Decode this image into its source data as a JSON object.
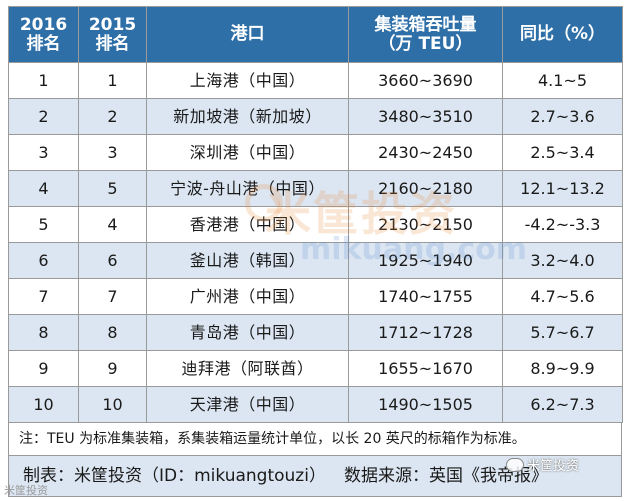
{
  "headers": {
    "rank2016": [
      "2016",
      "排名"
    ],
    "rank2015": [
      "2015",
      "排名"
    ],
    "port": "港口",
    "throughput": [
      "集装箱吞吐量",
      "（万 TEU）"
    ],
    "yoy": "同比（%）"
  },
  "rows": [
    {
      "r2016": "1",
      "r2015": "1",
      "port": "上海港（中国）",
      "teu": "3660~3690",
      "yoy": "4.1~5"
    },
    {
      "r2016": "2",
      "r2015": "2",
      "port": "新加坡港（新加坡）",
      "teu": "3480~3510",
      "yoy": "2.7~3.6"
    },
    {
      "r2016": "3",
      "r2015": "3",
      "port": "深圳港（中国）",
      "teu": "2430~2450",
      "yoy": "2.5~3.4"
    },
    {
      "r2016": "4",
      "r2015": "5",
      "port": "宁波-舟山港（中国）",
      "teu": "2160~2180",
      "yoy": "12.1~13.2"
    },
    {
      "r2016": "5",
      "r2015": "4",
      "port": "香港港（中国）",
      "teu": "2130~2150",
      "yoy": "-4.2~-3.3"
    },
    {
      "r2016": "6",
      "r2015": "6",
      "port": "釜山港（韩国）",
      "teu": "1925~1940",
      "yoy": "3.2~4.0"
    },
    {
      "r2016": "7",
      "r2015": "7",
      "port": "广州港（中国）",
      "teu": "1740~1755",
      "yoy": "4.7~5.6"
    },
    {
      "r2016": "8",
      "r2015": "8",
      "port": "青岛港（中国）",
      "teu": "1712~1728",
      "yoy": "5.7~6.7"
    },
    {
      "r2016": "9",
      "r2015": "9",
      "port": "迪拜港（阿联酋）",
      "teu": "1655~1670",
      "yoy": "8.9~9.9"
    },
    {
      "r2016": "10",
      "r2015": "10",
      "port": "天津港（中国）",
      "teu": "1490~1505",
      "yoy": "6.2~7.3"
    }
  ],
  "note": "注：TEU 为标准集装箱，系集装箱运量统计单位，以长 20 英尺的标箱作为标准。",
  "footer": {
    "maker": "制表：米筐投资（ID：mikuangtouzi）",
    "source": "数据来源：英国《我帝报》"
  },
  "watermark": {
    "cn": "米筐投资",
    "en": "mikuang.com"
  },
  "corner_mark": "米筐投资",
  "wechat_mark": "米筐投资",
  "colors": {
    "header_bg": "#2e6fa8",
    "stripe": "#dce6f2",
    "border": "#9a9a9a"
  }
}
